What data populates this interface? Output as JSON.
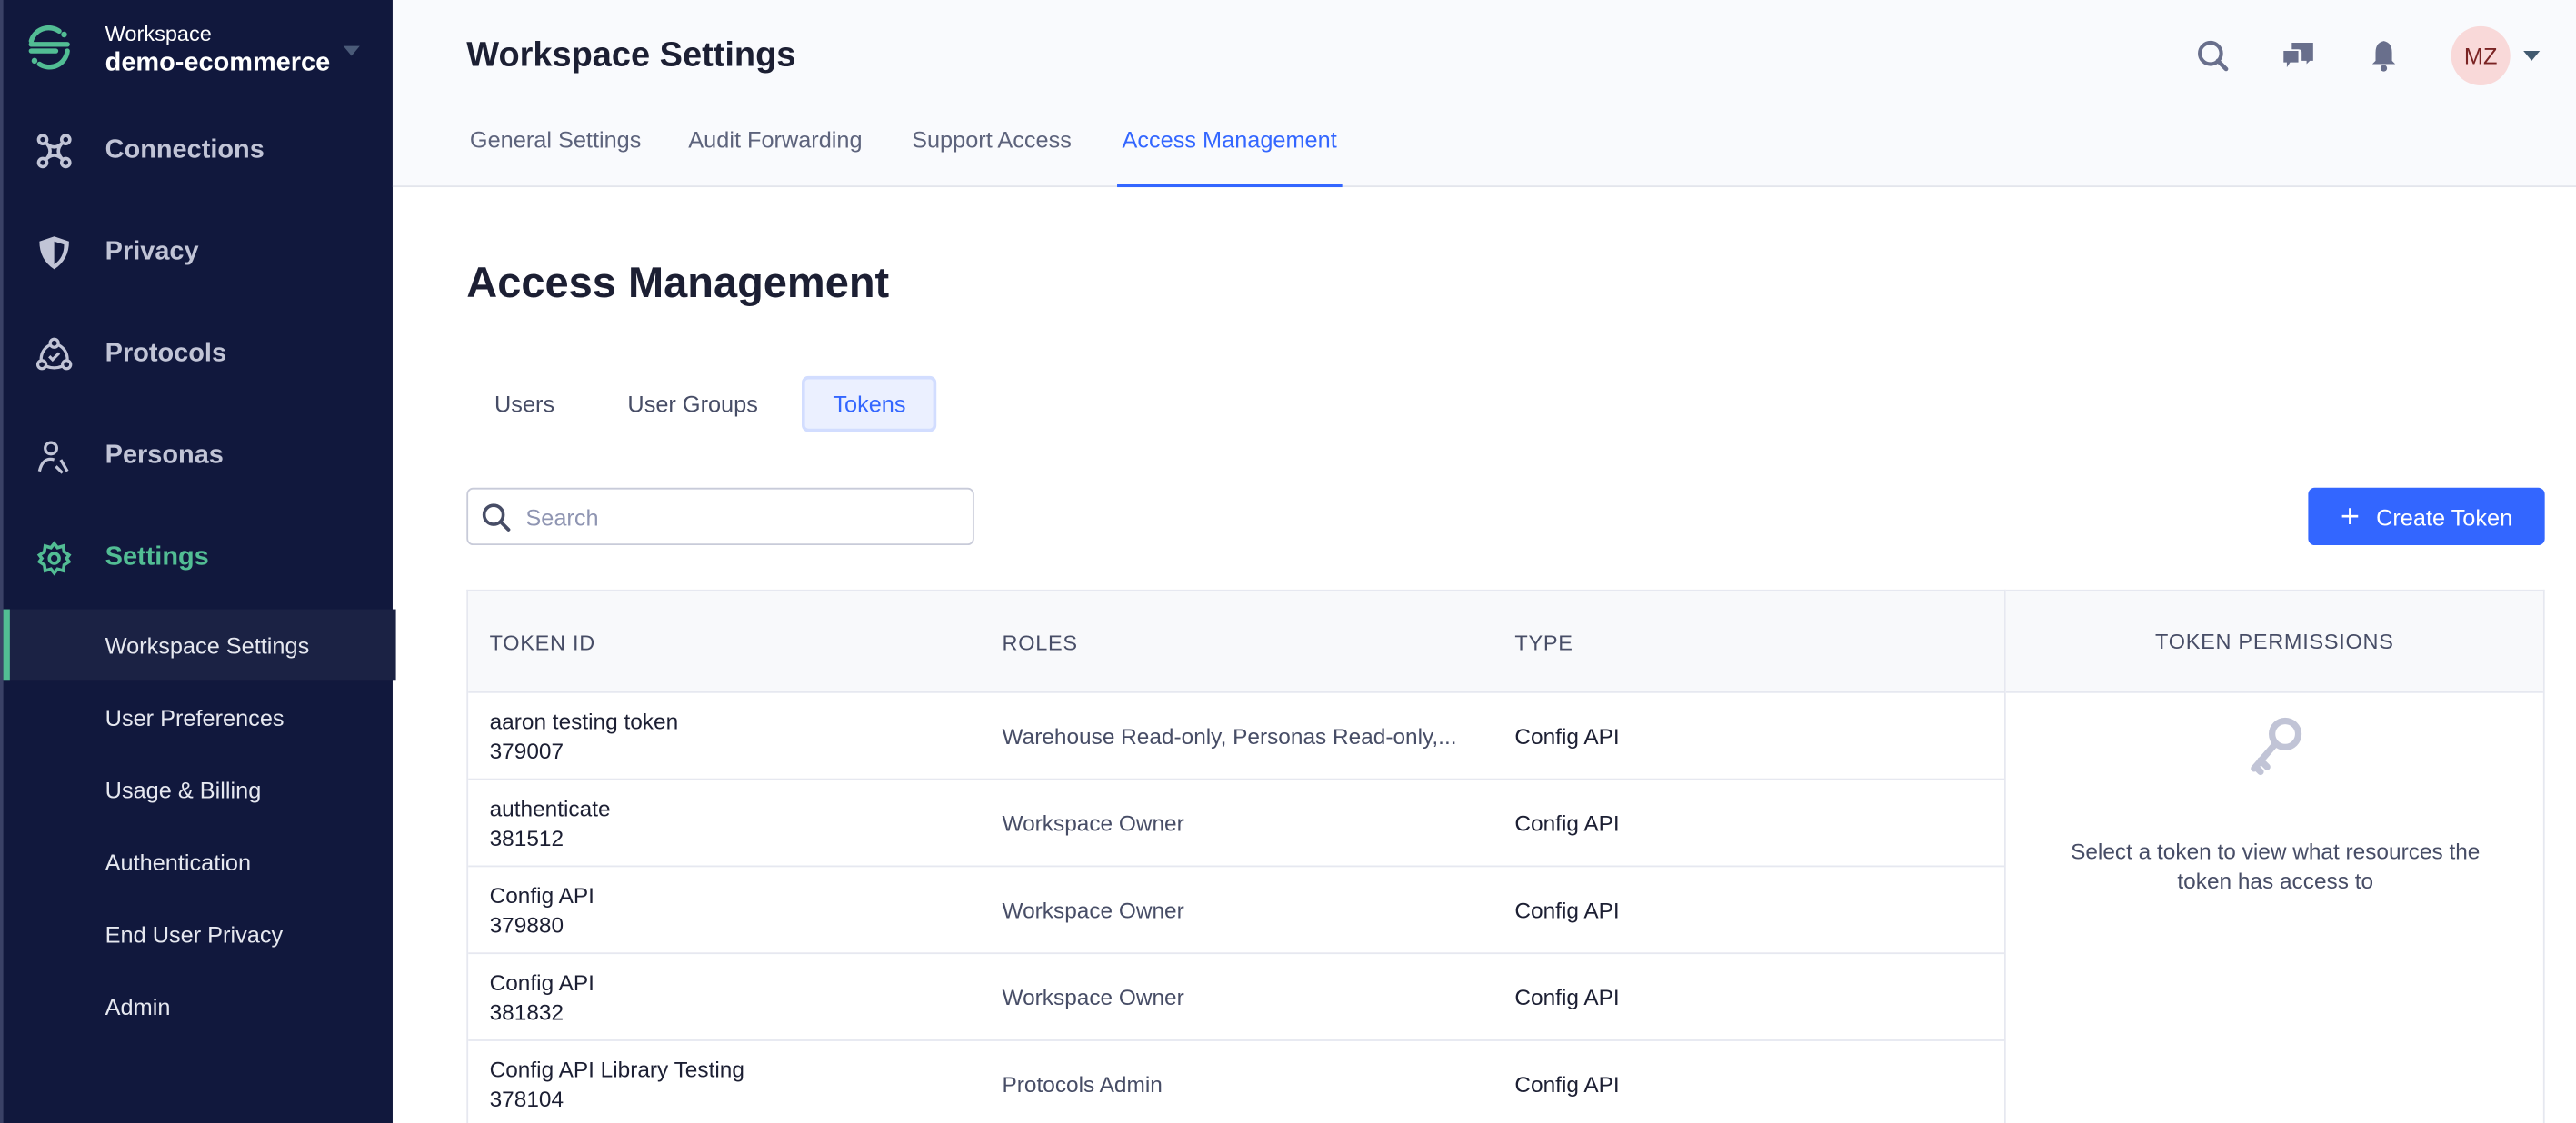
{
  "sidebar": {
    "workspace_label": "Workspace",
    "workspace_name": "demo-ecommerce",
    "nav": [
      {
        "label": "Connections",
        "icon": "connections-icon"
      },
      {
        "label": "Privacy",
        "icon": "shield-icon"
      },
      {
        "label": "Protocols",
        "icon": "protocols-icon"
      },
      {
        "label": "Personas",
        "icon": "personas-icon"
      },
      {
        "label": "Settings",
        "icon": "gear-icon"
      }
    ],
    "sub": [
      {
        "label": "Workspace Settings"
      },
      {
        "label": "User Preferences"
      },
      {
        "label": "Usage & Billing"
      },
      {
        "label": "Authentication"
      },
      {
        "label": "End User Privacy"
      },
      {
        "label": "Admin"
      }
    ]
  },
  "header": {
    "title": "Workspace Settings",
    "tabs": [
      {
        "label": "General Settings"
      },
      {
        "label": "Audit Forwarding"
      },
      {
        "label": "Support Access"
      },
      {
        "label": "Access Management"
      }
    ],
    "avatar": "MZ"
  },
  "main": {
    "title": "Access Management",
    "subtabs": [
      {
        "label": "Users"
      },
      {
        "label": "User Groups"
      },
      {
        "label": "Tokens"
      }
    ],
    "search_placeholder": "Search",
    "create_label": "Create Token",
    "columns": [
      "TOKEN ID",
      "ROLES",
      "TYPE"
    ],
    "rows": [
      {
        "name": "aaron testing token",
        "id": "379007",
        "roles": "Warehouse Read-only, Personas Read-only,...",
        "type": "Config API"
      },
      {
        "name": "authenticate",
        "id": "381512",
        "roles": "Workspace Owner",
        "type": "Config API"
      },
      {
        "name": "Config API",
        "id": "379880",
        "roles": "Workspace Owner",
        "type": "Config API"
      },
      {
        "name": "Config API",
        "id": "381832",
        "roles": "Workspace Owner",
        "type": "Config API"
      },
      {
        "name": "Config API Library Testing",
        "id": "378104",
        "roles": "Protocols Admin",
        "type": "Config API"
      }
    ],
    "panel_title": "TOKEN PERMISSIONS",
    "panel_text": "Select a token to view what resources the token has access to"
  },
  "colors": {
    "sidebar": "#11183d",
    "accent": "#3366ff",
    "green": "#52bd94"
  }
}
